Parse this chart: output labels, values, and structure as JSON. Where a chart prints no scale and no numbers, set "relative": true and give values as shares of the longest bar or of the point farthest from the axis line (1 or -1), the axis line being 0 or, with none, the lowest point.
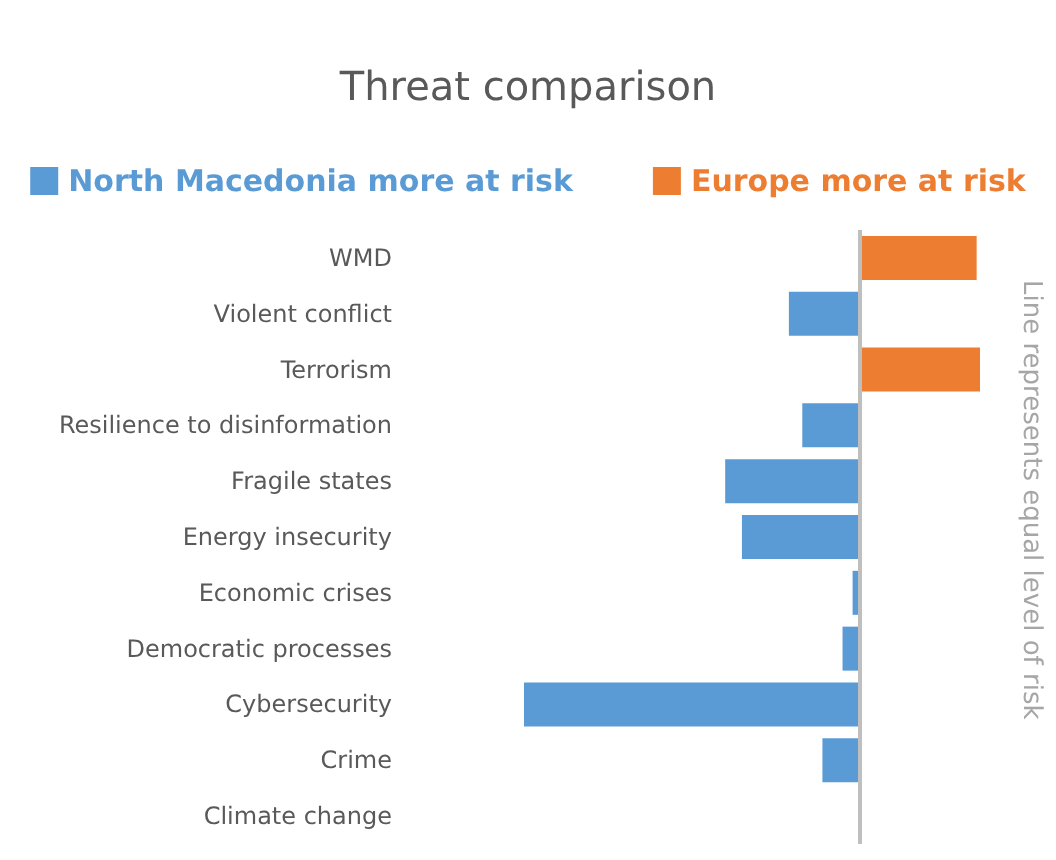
{
  "chart_data": {
    "type": "bar",
    "orientation": "horizontal",
    "relative": true,
    "title": "Threat comparison",
    "categories": [
      "WMD",
      "Violent conflict",
      "Terrorism",
      "Resilience to disinformation",
      "Fragile states",
      "Energy insecurity",
      "Economic crises",
      "Democratic processes",
      "Cybersecurity",
      "Crime",
      "Climate change"
    ],
    "series": [
      {
        "name": "North Macedonia more at risk",
        "color": "#5b9bd5",
        "values": [
          null,
          -0.21,
          null,
          -0.17,
          -0.4,
          -0.35,
          -0.02,
          -0.05,
          -1,
          -0.11,
          0
        ]
      },
      {
        "name": "Europe more at risk",
        "color": "#ed7d31",
        "values": [
          0.35,
          null,
          0.36,
          null,
          null,
          null,
          null,
          null,
          null,
          null,
          null
        ]
      }
    ],
    "ref_lines": [
      {
        "axis": "x",
        "value": 0,
        "label": "Line represents equal level of risk",
        "color": "#bfbfbf"
      }
    ],
    "legend": "top"
  }
}
